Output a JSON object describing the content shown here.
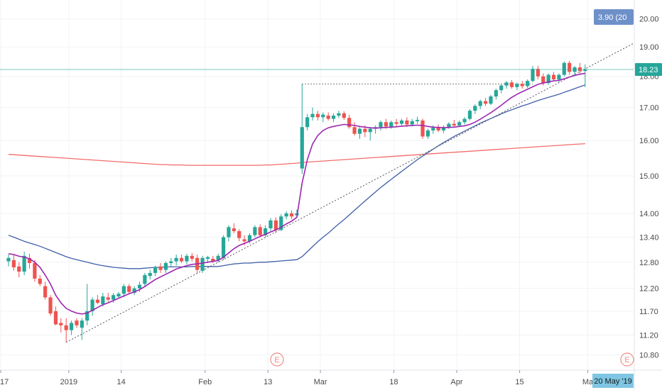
{
  "chart_data": {
    "type": "candlestick",
    "price_scale": "log",
    "ylim": [
      10.5,
      20.6
    ],
    "y_ticks": [
      "20.00",
      "19.00",
      "18.00",
      "17.00",
      "16.00",
      "15.00",
      "14.00",
      "13.40",
      "12.80",
      "12.20",
      "11.70",
      "11.20",
      "10.80"
    ],
    "x_ticks": [
      "17",
      "2019",
      "14",
      "Feb",
      "13",
      "Mar",
      "18",
      "Apr",
      "15",
      "Ma"
    ],
    "last_price_label": "18.23",
    "change_label": "3.90 (20",
    "crosshair_date_label": "20 May '19",
    "earnings_marker_label": "E",
    "resistance_level": 17.75,
    "grid": true,
    "colors": {
      "up": "#26a69a",
      "down": "#ef5350",
      "ma_fast": "#9c27b0",
      "ma_mid": "#3f5fa8",
      "ma_slow": "#ef5350",
      "trendline": "#555555",
      "price_tag": "#26a69a",
      "change_tag": "#6d90c9",
      "date_tag": "#7ec6e3",
      "earnings": "#f28b82"
    },
    "candles": [
      [
        12.82,
        12.98,
        12.7,
        12.9
      ],
      [
        12.85,
        12.98,
        12.6,
        12.68
      ],
      [
        12.7,
        12.8,
        12.45,
        12.58
      ],
      [
        12.58,
        13.05,
        12.5,
        12.95
      ],
      [
        12.9,
        13.0,
        12.65,
        12.78
      ],
      [
        12.78,
        12.85,
        12.35,
        12.42
      ],
      [
        12.42,
        12.5,
        12.25,
        12.3
      ],
      [
        12.25,
        12.35,
        11.95,
        12.0
      ],
      [
        12.0,
        12.05,
        11.6,
        11.65
      ],
      [
        11.7,
        11.8,
        11.4,
        11.42
      ],
      [
        11.45,
        11.55,
        11.25,
        11.4
      ],
      [
        11.4,
        11.55,
        11.05,
        11.3
      ],
      [
        11.3,
        11.5,
        11.2,
        11.45
      ],
      [
        11.5,
        11.55,
        11.35,
        11.4
      ],
      [
        11.35,
        11.55,
        11.1,
        11.5
      ],
      [
        11.5,
        12.3,
        11.4,
        11.7
      ],
      [
        11.7,
        12.0,
        11.6,
        11.95
      ],
      [
        11.95,
        12.05,
        11.85,
        11.88
      ],
      [
        11.85,
        12.1,
        11.8,
        12.02
      ],
      [
        12.0,
        12.1,
        11.9,
        11.95
      ],
      [
        11.95,
        12.1,
        11.88,
        12.05
      ],
      [
        12.02,
        12.12,
        11.98,
        12.08
      ],
      [
        12.08,
        12.3,
        12.0,
        12.25
      ],
      [
        12.25,
        12.3,
        12.08,
        12.12
      ],
      [
        12.1,
        12.25,
        12.05,
        12.2
      ],
      [
        12.2,
        12.35,
        12.12,
        12.28
      ],
      [
        12.3,
        12.55,
        12.25,
        12.5
      ],
      [
        12.48,
        12.62,
        12.4,
        12.55
      ],
      [
        12.55,
        12.72,
        12.48,
        12.68
      ],
      [
        12.7,
        12.78,
        12.55,
        12.62
      ],
      [
        12.62,
        12.82,
        12.55,
        12.78
      ],
      [
        12.78,
        12.9,
        12.7,
        12.82
      ],
      [
        12.82,
        12.98,
        12.72,
        12.9
      ],
      [
        12.9,
        12.98,
        12.78,
        12.82
      ],
      [
        12.82,
        13.0,
        12.75,
        12.95
      ],
      [
        12.95,
        13.02,
        12.82,
        12.88
      ],
      [
        12.9,
        12.98,
        12.55,
        12.62
      ],
      [
        12.6,
        12.95,
        12.55,
        12.9
      ],
      [
        12.88,
        12.95,
        12.78,
        12.92
      ],
      [
        12.88,
        12.95,
        12.78,
        12.82
      ],
      [
        12.85,
        13.0,
        12.8,
        12.95
      ],
      [
        12.9,
        13.45,
        12.85,
        13.4
      ],
      [
        13.4,
        13.7,
        13.3,
        13.65
      ],
      [
        13.62,
        13.75,
        13.5,
        13.55
      ],
      [
        13.55,
        13.6,
        13.3,
        13.38
      ],
      [
        13.35,
        13.45,
        13.2,
        13.3
      ],
      [
        13.3,
        13.5,
        13.25,
        13.45
      ],
      [
        13.45,
        13.7,
        13.4,
        13.65
      ],
      [
        13.65,
        13.72,
        13.4,
        13.45
      ],
      [
        13.45,
        13.7,
        13.4,
        13.62
      ],
      [
        13.62,
        13.88,
        13.55,
        13.82
      ],
      [
        13.82,
        13.9,
        13.5,
        13.58
      ],
      [
        13.58,
        13.98,
        13.55,
        13.92
      ],
      [
        13.92,
        14.05,
        13.85,
        14.0
      ],
      [
        14.0,
        14.08,
        13.85,
        13.92
      ],
      [
        13.95,
        14.1,
        13.88,
        14.0
      ],
      [
        15.2,
        17.75,
        15.05,
        16.4
      ],
      [
        16.4,
        16.8,
        16.3,
        16.7
      ],
      [
        16.7,
        17.0,
        16.6,
        16.8
      ],
      [
        16.8,
        16.9,
        16.6,
        16.7
      ],
      [
        16.7,
        16.85,
        16.55,
        16.78
      ],
      [
        16.75,
        16.85,
        16.6,
        16.65
      ],
      [
        16.65,
        16.82,
        16.55,
        16.75
      ],
      [
        16.75,
        16.9,
        16.68,
        16.82
      ],
      [
        16.82,
        16.88,
        16.62,
        16.68
      ],
      [
        16.68,
        16.78,
        16.35,
        16.4
      ],
      [
        16.4,
        16.55,
        16.15,
        16.2
      ],
      [
        16.2,
        16.4,
        16.05,
        16.35
      ],
      [
        16.35,
        16.45,
        16.1,
        16.25
      ],
      [
        16.25,
        16.4,
        16.0,
        16.35
      ],
      [
        16.35,
        16.45,
        16.2,
        16.4
      ],
      [
        16.4,
        16.6,
        16.3,
        16.55
      ],
      [
        16.55,
        16.65,
        16.35,
        16.42
      ],
      [
        16.4,
        16.6,
        16.35,
        16.55
      ],
      [
        16.55,
        16.65,
        16.42,
        16.5
      ],
      [
        16.5,
        16.65,
        16.45,
        16.6
      ],
      [
        16.6,
        16.7,
        16.4,
        16.48
      ],
      [
        16.48,
        16.65,
        16.42,
        16.58
      ],
      [
        16.58,
        16.72,
        16.5,
        16.62
      ],
      [
        16.6,
        16.66,
        16.05,
        16.12
      ],
      [
        16.12,
        16.35,
        16.05,
        16.3
      ],
      [
        16.3,
        16.45,
        16.2,
        16.38
      ],
      [
        16.38,
        16.48,
        16.25,
        16.3
      ],
      [
        16.3,
        16.45,
        16.22,
        16.4
      ],
      [
        16.4,
        16.55,
        16.35,
        16.5
      ],
      [
        16.5,
        16.62,
        16.4,
        16.45
      ],
      [
        16.45,
        16.6,
        16.4,
        16.55
      ],
      [
        16.55,
        16.7,
        16.48,
        16.65
      ],
      [
        16.65,
        16.95,
        16.6,
        16.9
      ],
      [
        16.9,
        17.1,
        16.8,
        17.05
      ],
      [
        17.05,
        17.25,
        16.95,
        17.2
      ],
      [
        17.2,
        17.3,
        17.05,
        17.12
      ],
      [
        17.12,
        17.4,
        17.08,
        17.35
      ],
      [
        17.35,
        17.6,
        17.25,
        17.55
      ],
      [
        17.55,
        17.75,
        17.45,
        17.7
      ],
      [
        17.7,
        17.85,
        17.6,
        17.8
      ],
      [
        17.8,
        17.88,
        17.6,
        17.65
      ],
      [
        17.65,
        17.8,
        17.55,
        17.75
      ],
      [
        17.75,
        17.85,
        17.6,
        17.68
      ],
      [
        17.68,
        17.9,
        17.62,
        17.85
      ],
      [
        17.85,
        18.35,
        17.8,
        18.25
      ],
      [
        18.25,
        18.35,
        17.9,
        18.0
      ],
      [
        18.0,
        18.1,
        17.7,
        17.78
      ],
      [
        17.78,
        18.1,
        17.72,
        18.05
      ],
      [
        18.05,
        18.15,
        17.85,
        17.9
      ],
      [
        17.9,
        18.1,
        17.8,
        18.05
      ],
      [
        18.05,
        18.5,
        18.0,
        18.45
      ],
      [
        18.45,
        18.52,
        18.05,
        18.15
      ],
      [
        18.15,
        18.35,
        18.0,
        18.3
      ],
      [
        18.3,
        18.45,
        18.1,
        18.18
      ],
      [
        18.18,
        18.4,
        17.65,
        18.23
      ]
    ],
    "ma_fast": [
      13.0,
      12.98,
      12.94,
      12.92,
      12.88,
      12.8,
      12.68,
      12.5,
      12.3,
      12.05,
      11.88,
      11.76,
      11.7,
      11.66,
      11.64,
      11.66,
      11.72,
      11.78,
      11.84,
      11.88,
      11.93,
      11.98,
      12.03,
      12.08,
      12.12,
      12.17,
      12.24,
      12.32,
      12.4,
      12.46,
      12.52,
      12.58,
      12.64,
      12.68,
      12.72,
      12.75,
      12.76,
      12.78,
      12.8,
      12.82,
      12.84,
      12.92,
      13.02,
      13.12,
      13.2,
      13.25,
      13.3,
      13.36,
      13.42,
      13.47,
      13.53,
      13.58,
      13.65,
      13.73,
      13.8,
      13.9,
      14.8,
      15.45,
      15.9,
      16.15,
      16.3,
      16.38,
      16.42,
      16.45,
      16.48,
      16.47,
      16.45,
      16.42,
      16.4,
      16.38,
      16.37,
      16.38,
      16.39,
      16.4,
      16.41,
      16.43,
      16.44,
      16.45,
      16.46,
      16.45,
      16.42,
      16.4,
      16.39,
      16.38,
      16.39,
      16.4,
      16.42,
      16.44,
      16.48,
      16.55,
      16.64,
      16.74,
      16.84,
      16.95,
      17.07,
      17.2,
      17.32,
      17.42,
      17.5,
      17.58,
      17.66,
      17.74,
      17.78,
      17.82,
      17.85,
      17.87,
      17.92,
      17.98,
      18.03,
      18.07,
      18.1
    ],
    "ma_mid": [
      13.45,
      13.4,
      13.35,
      13.3,
      13.26,
      13.22,
      13.18,
      13.13,
      13.08,
      13.03,
      12.98,
      12.93,
      12.89,
      12.86,
      12.83,
      12.8,
      12.77,
      12.74,
      12.72,
      12.7,
      12.68,
      12.67,
      12.66,
      12.65,
      12.65,
      12.65,
      12.66,
      12.67,
      12.68,
      12.68,
      12.69,
      12.69,
      12.69,
      12.69,
      12.69,
      12.7,
      12.7,
      12.7,
      12.7,
      12.7,
      12.7,
      12.72,
      12.74,
      12.76,
      12.77,
      12.78,
      12.78,
      12.79,
      12.8,
      12.8,
      12.81,
      12.82,
      12.83,
      12.84,
      12.85,
      12.86,
      12.93,
      13.05,
      13.17,
      13.29,
      13.4,
      13.5,
      13.62,
      13.73,
      13.84,
      13.96,
      14.08,
      14.2,
      14.32,
      14.44,
      14.56,
      14.68,
      14.79,
      14.9,
      15.01,
      15.12,
      15.23,
      15.34,
      15.45,
      15.55,
      15.65,
      15.75,
      15.85,
      15.94,
      16.03,
      16.12,
      16.2,
      16.28,
      16.36,
      16.44,
      16.52,
      16.59,
      16.66,
      16.73,
      16.8,
      16.87,
      16.93,
      16.99,
      17.05,
      17.1,
      17.16,
      17.22,
      17.27,
      17.32,
      17.37,
      17.42,
      17.48,
      17.54,
      17.6,
      17.66,
      17.72
    ],
    "ma_slow": [
      15.6,
      15.59,
      15.58,
      15.57,
      15.56,
      15.55,
      15.54,
      15.53,
      15.52,
      15.51,
      15.5,
      15.49,
      15.48,
      15.47,
      15.46,
      15.45,
      15.44,
      15.43,
      15.42,
      15.41,
      15.4,
      15.39,
      15.38,
      15.37,
      15.36,
      15.35,
      15.34,
      15.33,
      15.32,
      15.31,
      15.31,
      15.3,
      15.3,
      15.3,
      15.29,
      15.29,
      15.29,
      15.29,
      15.29,
      15.29,
      15.29,
      15.29,
      15.29,
      15.29,
      15.29,
      15.29,
      15.29,
      15.29,
      15.29,
      15.3,
      15.3,
      15.31,
      15.32,
      15.33,
      15.34,
      15.35,
      15.37,
      15.38,
      15.39,
      15.4,
      15.41,
      15.42,
      15.43,
      15.44,
      15.45,
      15.46,
      15.47,
      15.48,
      15.49,
      15.5,
      15.51,
      15.52,
      15.53,
      15.54,
      15.55,
      15.56,
      15.57,
      15.58,
      15.59,
      15.6,
      15.61,
      15.62,
      15.63,
      15.64,
      15.65,
      15.66,
      15.67,
      15.68,
      15.69,
      15.7,
      15.71,
      15.72,
      15.73,
      15.74,
      15.75,
      15.76,
      15.77,
      15.78,
      15.79,
      15.8,
      15.81,
      15.82,
      15.83,
      15.84,
      15.85,
      15.86,
      15.87,
      15.88,
      15.89,
      15.9,
      15.91
    ],
    "trendline": {
      "start_index": 11,
      "start_value": 11.05,
      "end_index": 110,
      "end_value": 18.25
    }
  }
}
